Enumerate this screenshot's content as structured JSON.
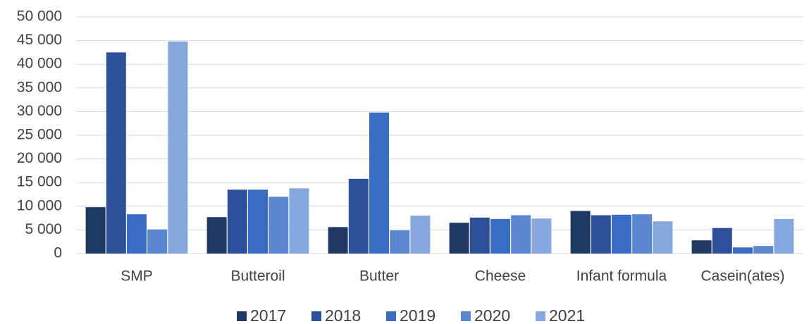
{
  "chart_data": {
    "type": "bar",
    "categories": [
      "SMP",
      "Butteroil",
      "Butter",
      "Cheese",
      "Infant formula",
      "Casein(ates)"
    ],
    "series": [
      {
        "name": "2017",
        "color": "#1f3864",
        "values": [
          9800,
          7700,
          5600,
          6500,
          9000,
          2800
        ]
      },
      {
        "name": "2018",
        "color": "#2e4f9a",
        "values": [
          42500,
          13500,
          15800,
          7600,
          8100,
          5400
        ]
      },
      {
        "name": "2019",
        "color": "#3a6cc4",
        "values": [
          8300,
          13500,
          29800,
          7300,
          8200,
          1300
        ]
      },
      {
        "name": "2020",
        "color": "#5b87d0",
        "values": [
          5100,
          12000,
          4900,
          8100,
          8300,
          1600
        ]
      },
      {
        "name": "2021",
        "color": "#87a8de",
        "values": [
          44800,
          13800,
          8000,
          7400,
          6800,
          7300
        ]
      }
    ],
    "ylim": [
      0,
      50000
    ],
    "yticks": [
      0,
      {
        "value": 5000,
        "label": "5 000"
      },
      {
        "value": 10000,
        "label": "10 000"
      },
      {
        "value": 15000,
        "label": "15 000"
      },
      {
        "value": 20000,
        "label": "20 000"
      },
      {
        "value": 25000,
        "label": "25 000"
      },
      {
        "value": 30000,
        "label": "30 000"
      },
      {
        "value": 35000,
        "label": "35 000"
      },
      {
        "value": 40000,
        "label": "40 000"
      },
      {
        "value": 45000,
        "label": "45 000"
      },
      {
        "value": 50000,
        "label": "50 000"
      }
    ],
    "grid": true,
    "legend": "bottom"
  }
}
